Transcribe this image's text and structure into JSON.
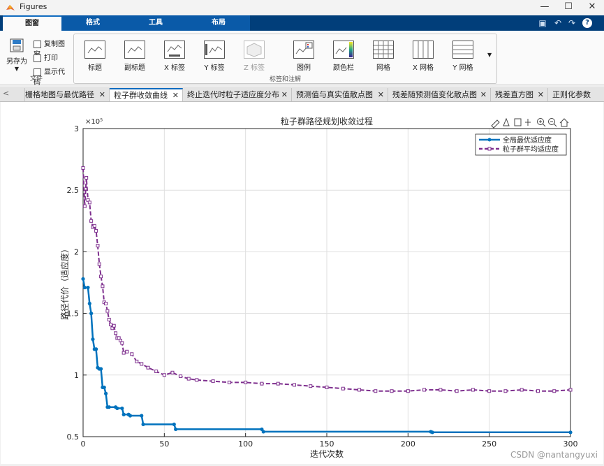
{
  "window": {
    "title": "Figures",
    "minimize": "—",
    "maximize": "☐",
    "close": "✕"
  },
  "ribbon_tabs": [
    {
      "label": "图窗",
      "active": true
    },
    {
      "label": "格式",
      "active": false
    },
    {
      "label": "工具",
      "active": false
    },
    {
      "label": "布局",
      "active": false
    }
  ],
  "quick_access": {
    "save": "save-icon",
    "undo": "undo-icon",
    "redo": "redo-icon",
    "help": "?"
  },
  "file_group": {
    "label": "文件",
    "save_as": "另存为",
    "copy_figure": "复制图窗",
    "print": "打印",
    "show_code": "显示代码"
  },
  "anno_group": {
    "label": "标签和注解",
    "buttons": [
      "标题",
      "副标题",
      "X 标签",
      "Y 标签",
      "Z 标签",
      "图例",
      "颜色栏",
      "网格",
      "X 网格",
      "Y 网格"
    ]
  },
  "doc_tabs": [
    {
      "label": "栅格地图与最优路径",
      "active": false
    },
    {
      "label": "粒子群收敛曲线",
      "active": true
    },
    {
      "label": "终止迭代时粒子适应度分布",
      "active": false
    },
    {
      "label": "预测值与真实值散点图",
      "active": false
    },
    {
      "label": "残差随预测值变化散点图",
      "active": false
    },
    {
      "label": "残差直方图",
      "active": false
    },
    {
      "label": "正则化参数",
      "active": false
    }
  ],
  "watermark": "CSDN @nantangyuxi",
  "chart_data": {
    "type": "line",
    "title": "粒子群路径规划收敛过程",
    "xlabel": "迭代次数",
    "ylabel": "路径代价（适应度）",
    "exponent_label": "×10⁵",
    "xlim": [
      0,
      300
    ],
    "ylim": [
      0.5,
      3
    ],
    "scale": 100000,
    "xticks": [
      0,
      50,
      100,
      150,
      200,
      250,
      300
    ],
    "yticks": [
      0.5,
      1,
      1.5,
      2,
      2.5,
      3
    ],
    "grid": true,
    "legend_position": "top-right",
    "series": [
      {
        "name": "全局最优适应度",
        "color": "#0072BD",
        "marker": "dot",
        "points": [
          [
            0,
            1.78
          ],
          [
            1,
            1.71
          ],
          [
            3,
            1.71
          ],
          [
            4,
            1.58
          ],
          [
            5,
            1.5
          ],
          [
            6,
            1.29
          ],
          [
            7,
            1.21
          ],
          [
            8,
            1.21
          ],
          [
            9,
            1.06
          ],
          [
            10,
            1.05
          ],
          [
            11,
            1.05
          ],
          [
            12,
            0.9
          ],
          [
            13,
            0.9
          ],
          [
            14,
            0.85
          ],
          [
            15,
            0.74
          ],
          [
            16,
            0.74
          ],
          [
            20,
            0.74
          ],
          [
            21,
            0.73
          ],
          [
            24,
            0.73
          ],
          [
            25,
            0.68
          ],
          [
            28,
            0.68
          ],
          [
            29,
            0.67
          ],
          [
            36,
            0.67
          ],
          [
            37,
            0.6
          ],
          [
            56,
            0.6
          ],
          [
            57,
            0.56
          ],
          [
            110,
            0.56
          ],
          [
            111,
            0.54
          ],
          [
            214,
            0.54
          ],
          [
            215,
            0.535
          ],
          [
            300,
            0.535
          ]
        ]
      },
      {
        "name": "粒子群平均适应度",
        "color": "#7E2F8E",
        "marker": "square",
        "dashed": true,
        "points": [
          [
            0,
            2.68
          ],
          [
            1,
            2.37
          ],
          [
            2,
            2.6
          ],
          [
            3,
            2.42
          ],
          [
            4,
            2.4
          ],
          [
            5,
            2.25
          ],
          [
            6,
            2.2
          ],
          [
            7,
            2.21
          ],
          [
            8,
            2.17
          ],
          [
            9,
            2.05
          ],
          [
            10,
            1.9
          ],
          [
            11,
            1.8
          ],
          [
            12,
            1.72
          ],
          [
            13,
            1.59
          ],
          [
            14,
            1.58
          ],
          [
            15,
            1.52
          ],
          [
            16,
            1.45
          ],
          [
            17,
            1.41
          ],
          [
            18,
            1.38
          ],
          [
            19,
            1.4
          ],
          [
            20,
            1.34
          ],
          [
            21,
            1.3
          ],
          [
            22,
            1.3
          ],
          [
            23,
            1.28
          ],
          [
            24,
            1.26
          ],
          [
            25,
            1.18
          ],
          [
            27,
            1.19
          ],
          [
            30,
            1.17
          ],
          [
            33,
            1.11
          ],
          [
            36,
            1.09
          ],
          [
            40,
            1.06
          ],
          [
            45,
            1.03
          ],
          [
            50,
            1.0
          ],
          [
            55,
            1.02
          ],
          [
            60,
            0.99
          ],
          [
            65,
            0.97
          ],
          [
            70,
            0.96
          ],
          [
            80,
            0.95
          ],
          [
            90,
            0.94
          ],
          [
            100,
            0.94
          ],
          [
            110,
            0.93
          ],
          [
            120,
            0.93
          ],
          [
            130,
            0.92
          ],
          [
            140,
            0.91
          ],
          [
            150,
            0.9
          ],
          [
            160,
            0.89
          ],
          [
            170,
            0.88
          ],
          [
            180,
            0.87
          ],
          [
            190,
            0.87
          ],
          [
            200,
            0.87
          ],
          [
            210,
            0.88
          ],
          [
            220,
            0.88
          ],
          [
            230,
            0.87
          ],
          [
            240,
            0.88
          ],
          [
            250,
            0.87
          ],
          [
            260,
            0.87
          ],
          [
            270,
            0.88
          ],
          [
            280,
            0.87
          ],
          [
            290,
            0.87
          ],
          [
            300,
            0.88
          ]
        ]
      }
    ]
  }
}
